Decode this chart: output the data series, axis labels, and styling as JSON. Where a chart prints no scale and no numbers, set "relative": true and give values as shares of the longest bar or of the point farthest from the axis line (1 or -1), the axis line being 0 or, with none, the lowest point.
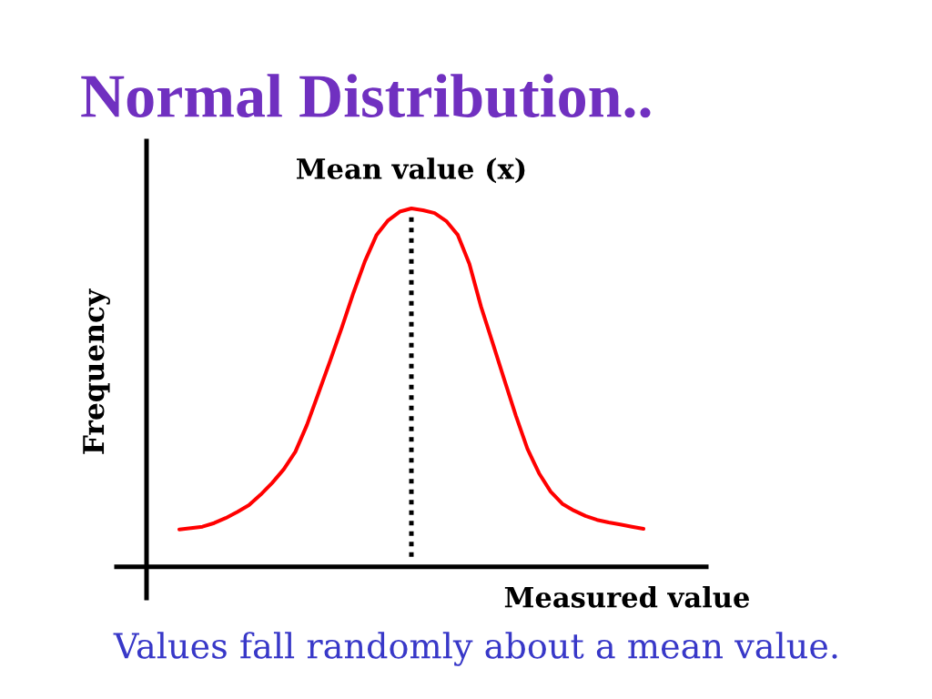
{
  "chart_data": {
    "type": "line",
    "title": "Normal Distribution..",
    "xlabel": "Measured value",
    "ylabel": "Frequency",
    "annotations": [
      "Values fall randomly about a mean value."
    ],
    "categories": [
      null,
      null,
      null,
      null,
      null,
      null,
      null,
      null,
      null,
      null,
      null,
      null,
      null,
      null,
      null,
      null,
      null,
      null,
      null,
      null,
      null,
      null,
      null,
      null,
      null,
      null,
      null,
      null,
      null,
      null,
      null,
      null,
      null,
      null,
      null,
      null,
      null,
      null,
      null,
      null,
      null
    ],
    "relative": true,
    "series": [
      {
        "color": "#ff0000",
        "values": [
          0.104,
          0.108,
          0.112,
          0.122,
          0.136,
          0.153,
          0.172,
          0.201,
          0.234,
          0.272,
          0.321,
          0.396,
          0.485,
          0.575,
          0.667,
          0.764,
          0.853,
          0.926,
          0.967,
          0.991,
          1.0,
          0.995,
          0.987,
          0.965,
          0.926,
          0.845,
          0.726,
          0.625,
          0.523,
          0.422,
          0.329,
          0.261,
          0.21,
          0.176,
          0.157,
          0.142,
          0.131,
          0.124,
          0.118,
          0.112,
          0.106
        ]
      }
    ],
    "ref_lines": [
      {
        "axis": "x",
        "label": "Mean value (x)",
        "color": "#000000",
        "line_style": "dotted"
      }
    ]
  }
}
